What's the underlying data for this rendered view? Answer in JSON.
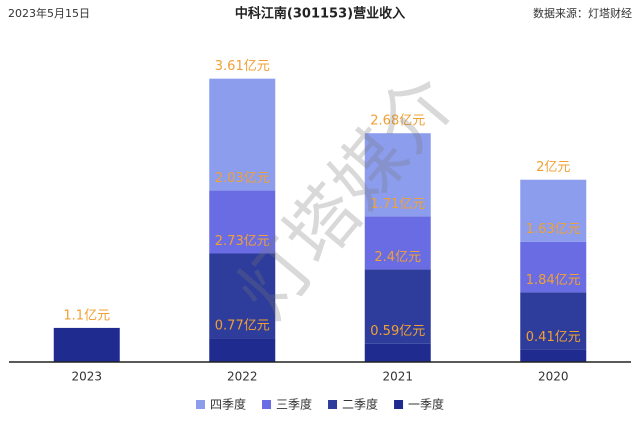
{
  "chart_data": {
    "type": "bar",
    "stacked": true,
    "title": "中科江南(301153)营业收入",
    "date": "2023年5月15日",
    "source": "数据来源：灯塔财经",
    "watermark": "灯塔媒介",
    "categories": [
      "2023",
      "2022",
      "2021",
      "2020"
    ],
    "series": [
      {
        "name": "一季度",
        "color": "#1f2b8f",
        "values": [
          1.1,
          0.77,
          0.59,
          0.41
        ],
        "value_labels": [
          "1.1亿元",
          "0.77亿元",
          "0.59亿元",
          "0.41亿元"
        ]
      },
      {
        "name": "二季度",
        "color": "#2e3d9c",
        "values": [
          null,
          2.73,
          2.4,
          1.84
        ],
        "value_labels": [
          null,
          "2.73亿元",
          "2.4亿元",
          "1.84亿元"
        ]
      },
      {
        "name": "三季度",
        "color": "#6a6ce4",
        "values": [
          null,
          2.03,
          1.71,
          1.63
        ],
        "value_labels": [
          null,
          "2.03亿元",
          "1.71亿元",
          "1.63亿元"
        ]
      },
      {
        "name": "四季度",
        "color": "#8d9ded",
        "values": [
          null,
          3.61,
          2.68,
          2
        ],
        "value_labels": [
          null,
          "3.61亿元",
          "2.68亿元",
          "2亿元"
        ]
      }
    ],
    "label_color": "#f0a035",
    "ylim": [
      0,
      10
    ]
  }
}
